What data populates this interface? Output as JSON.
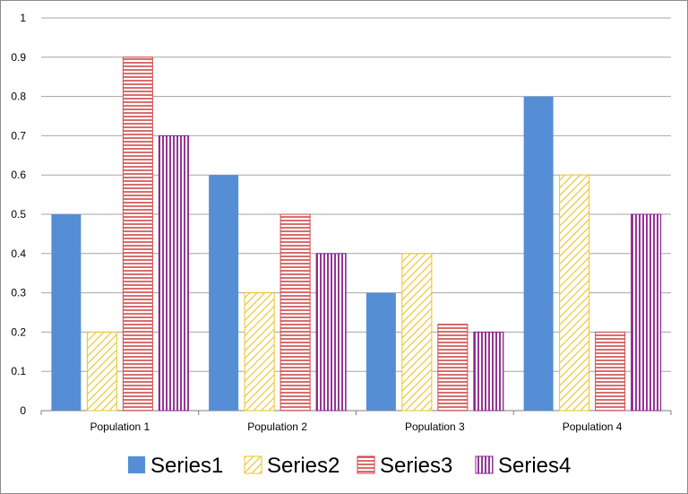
{
  "chart_data": {
    "type": "bar",
    "title": "",
    "xlabel": "",
    "ylabel": "",
    "categories": [
      "Population 1",
      "Population 2",
      "Population 3",
      "Population 4"
    ],
    "ylim": [
      0,
      1
    ],
    "yticks": [
      "0",
      "0.1",
      "0.2",
      "0.3",
      "0.4",
      "0.5",
      "0.6",
      "0.7",
      "0.8",
      "0.9",
      "1"
    ],
    "grid": true,
    "legend_position": "bottom",
    "series": [
      {
        "name": "Series1",
        "values": [
          0.5,
          0.6,
          0.3,
          0.8
        ],
        "color": "#558ed5",
        "pattern": "solid"
      },
      {
        "name": "Series2",
        "values": [
          0.2,
          0.3,
          0.4,
          0.6
        ],
        "color": "#e8c42a",
        "pattern": "diagonal-stripes"
      },
      {
        "name": "Series3",
        "values": [
          0.9,
          0.5,
          0.22,
          0.2
        ],
        "color": "#cf4a4a",
        "pattern": "horizontal-stripes"
      },
      {
        "name": "Series4",
        "values": [
          0.7,
          0.4,
          0.2,
          0.5
        ],
        "color": "#8a1f8a",
        "pattern": "vertical-stripes"
      }
    ]
  }
}
